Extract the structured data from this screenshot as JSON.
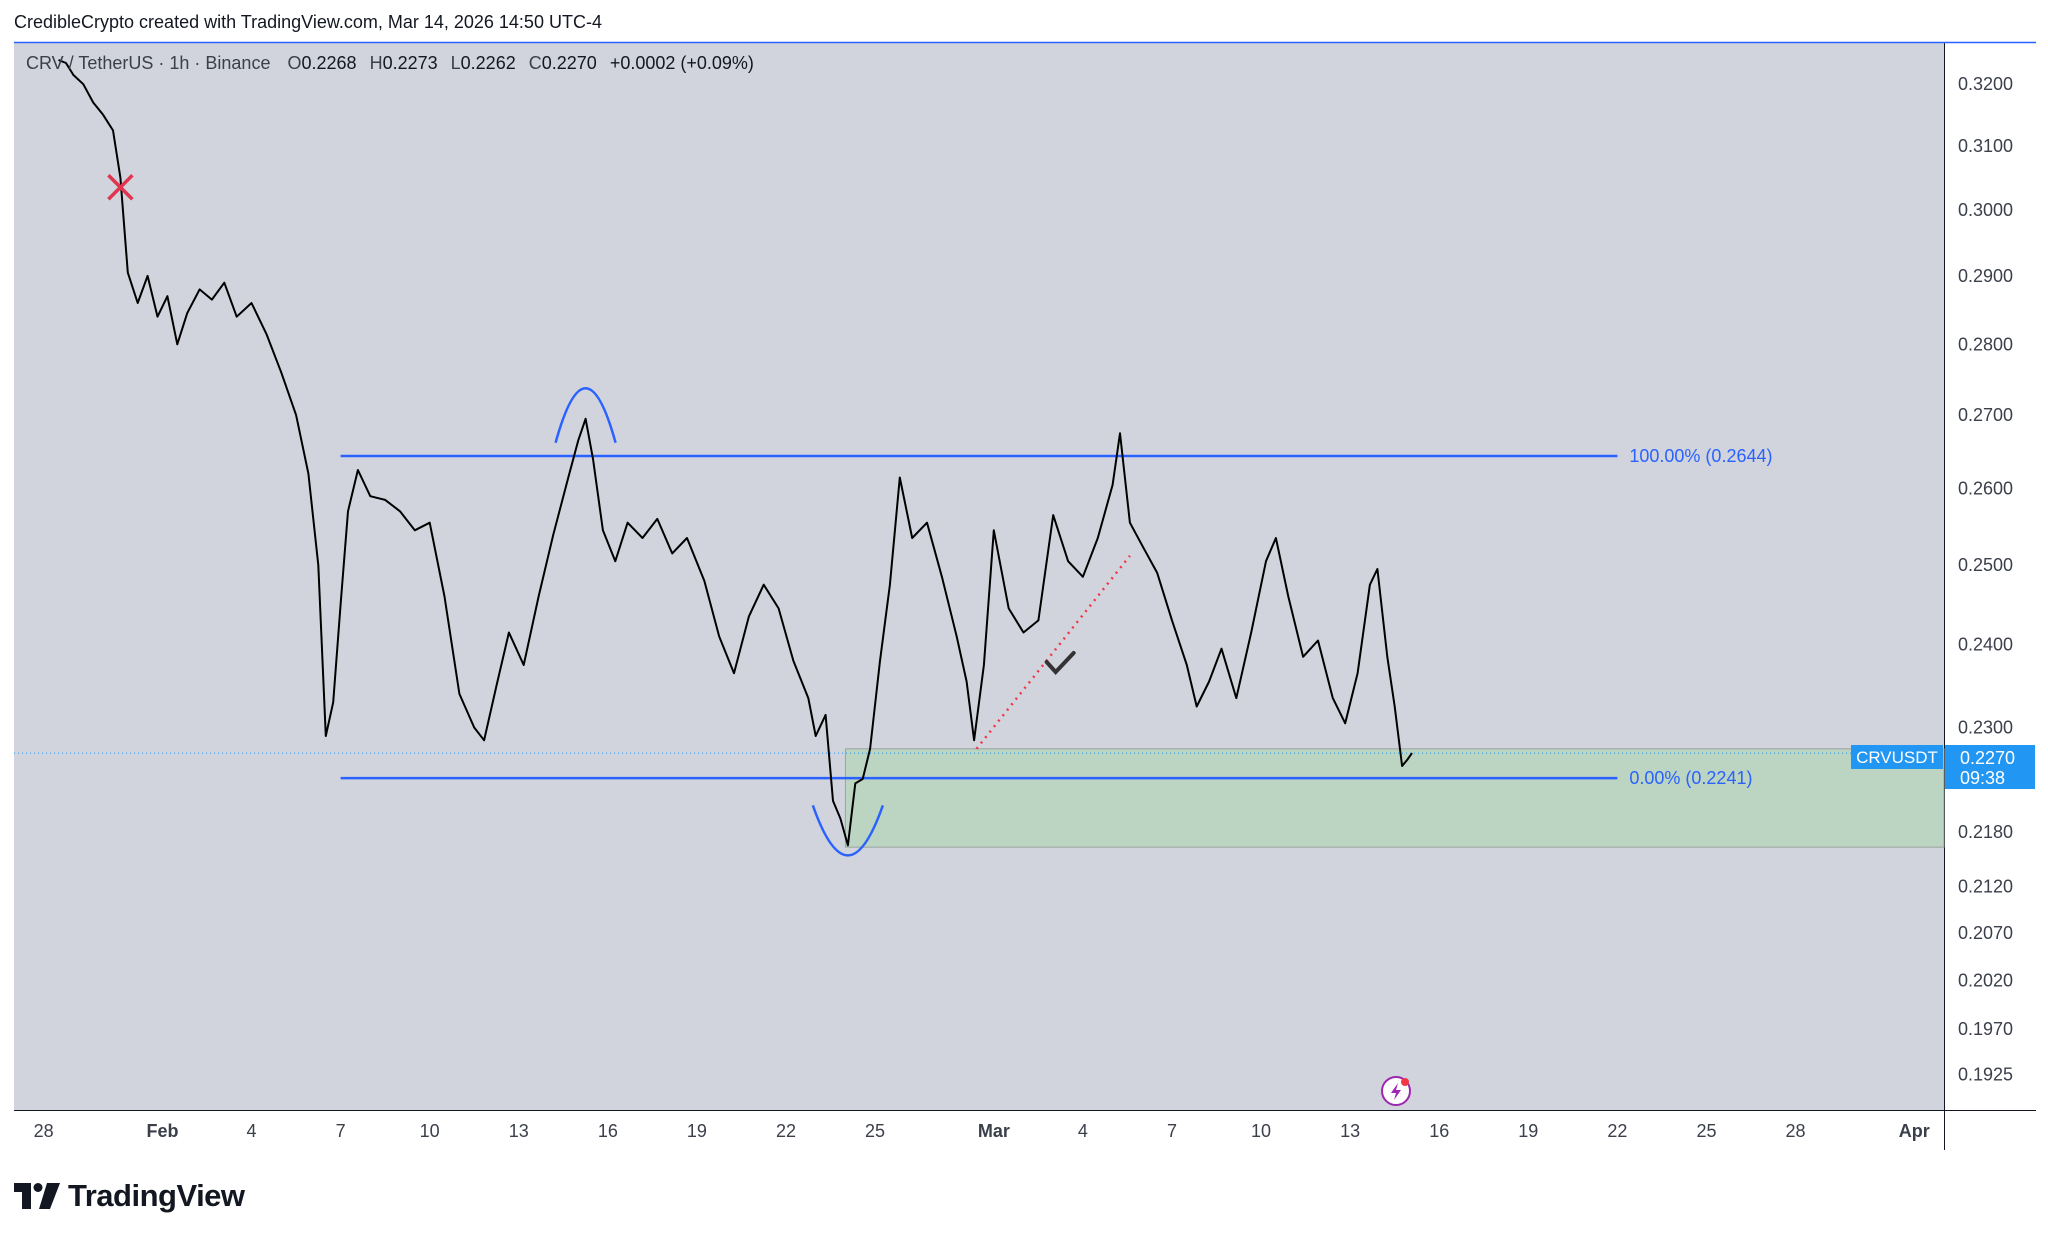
{
  "header": {
    "text": "CredibleCrypto created with TradingView.com, Mar 14, 2026 14:50 UTC-4"
  },
  "legend": {
    "symbol": "CRV / TetherUS · 1h · Binance",
    "open_label": "O",
    "open": "0.2268",
    "high_label": "H",
    "high": "0.2273",
    "low_label": "L",
    "low": "0.2262",
    "close_label": "C",
    "close": "0.2270",
    "change": "+0.0002 (+0.09%)"
  },
  "price_tag": {
    "symbol": "CRVUSDT",
    "price": "0.2270",
    "countdown": "09:38"
  },
  "colors": {
    "background": "#d1d4dd",
    "candles": "#000000",
    "fib_line": "#2962ff",
    "zone_fill": "#b8d4bd",
    "dotted_trend": "#f23645",
    "cross": "#e0344f",
    "tag_bg": "#2196f3"
  },
  "branding": {
    "logo_text": "TradingView"
  },
  "chart_data": {
    "type": "line",
    "y_scale": "log",
    "ylim": [
      0.189,
      0.327
    ],
    "xlim": [
      "2026-01-27",
      "2026-04-02"
    ],
    "y_ticks": [
      "0.3200",
      "0.3100",
      "0.3000",
      "0.2900",
      "0.2800",
      "0.2700",
      "0.2600",
      "0.2500",
      "0.2400",
      "0.2300",
      "0.2180",
      "0.2120",
      "0.2070",
      "0.2020",
      "0.1970",
      "0.1925"
    ],
    "x_ticks": [
      {
        "label": "28",
        "date": "2026-01-28"
      },
      {
        "label": "Feb",
        "date": "2026-02-01"
      },
      {
        "label": "4",
        "date": "2026-02-04"
      },
      {
        "label": "7",
        "date": "2026-02-07"
      },
      {
        "label": "10",
        "date": "2026-02-10"
      },
      {
        "label": "13",
        "date": "2026-02-13"
      },
      {
        "label": "16",
        "date": "2026-02-16"
      },
      {
        "label": "19",
        "date": "2026-02-19"
      },
      {
        "label": "22",
        "date": "2026-02-22"
      },
      {
        "label": "25",
        "date": "2026-02-25"
      },
      {
        "label": "Mar",
        "date": "2026-03-01"
      },
      {
        "label": "4",
        "date": "2026-03-04"
      },
      {
        "label": "7",
        "date": "2026-03-07"
      },
      {
        "label": "10",
        "date": "2026-03-10"
      },
      {
        "label": "13",
        "date": "2026-03-13"
      },
      {
        "label": "16",
        "date": "2026-03-16"
      },
      {
        "label": "19",
        "date": "2026-03-19"
      },
      {
        "label": "22",
        "date": "2026-03-22"
      },
      {
        "label": "25",
        "date": "2026-03-25"
      },
      {
        "label": "28",
        "date": "2026-03-28"
      },
      {
        "label": "Apr",
        "date": "2026-04-01"
      }
    ],
    "series": [
      {
        "points": [
          [
            "2026-01-28T12:00",
            0.324
          ],
          [
            "2026-01-28T18:00",
            0.3235
          ],
          [
            "2026-01-29T00:00",
            0.3215
          ],
          [
            "2026-01-29T08:00",
            0.32
          ],
          [
            "2026-01-29T16:00",
            0.317
          ],
          [
            "2026-01-30T00:00",
            0.315
          ],
          [
            "2026-01-30T08:00",
            0.3125
          ],
          [
            "2026-01-30T14:00",
            0.305
          ],
          [
            "2026-01-30T20:00",
            0.2905
          ],
          [
            "2026-01-31T04:00",
            0.286
          ],
          [
            "2026-01-31T12:00",
            0.29
          ],
          [
            "2026-01-31T20:00",
            0.284
          ],
          [
            "2026-02-01T04:00",
            0.287
          ],
          [
            "2026-02-01T12:00",
            0.28
          ],
          [
            "2026-02-01T20:00",
            0.2845
          ],
          [
            "2026-02-02T06:00",
            0.288
          ],
          [
            "2026-02-02T16:00",
            0.2865
          ],
          [
            "2026-02-03T02:00",
            0.289
          ],
          [
            "2026-02-03T12:00",
            0.284
          ],
          [
            "2026-02-04T00:00",
            0.286
          ],
          [
            "2026-02-04T12:00",
            0.2815
          ],
          [
            "2026-02-05T00:00",
            0.276
          ],
          [
            "2026-02-05T12:00",
            0.27
          ],
          [
            "2026-02-05T22:00",
            0.262
          ],
          [
            "2026-02-06T06:00",
            0.25
          ],
          [
            "2026-02-06T12:00",
            0.229
          ],
          [
            "2026-02-06T18:00",
            0.233
          ],
          [
            "2026-02-07T00:00",
            0.245
          ],
          [
            "2026-02-07T06:00",
            0.257
          ],
          [
            "2026-02-07T14:00",
            0.2625
          ],
          [
            "2026-02-08T00:00",
            0.259
          ],
          [
            "2026-02-08T12:00",
            0.2585
          ],
          [
            "2026-02-09T00:00",
            0.257
          ],
          [
            "2026-02-09T12:00",
            0.2545
          ],
          [
            "2026-02-10T00:00",
            0.2555
          ],
          [
            "2026-02-10T12:00",
            0.246
          ],
          [
            "2026-02-11T00:00",
            0.234
          ],
          [
            "2026-02-11T12:00",
            0.23
          ],
          [
            "2026-02-11T20:00",
            0.2285
          ],
          [
            "2026-02-12T06:00",
            0.235
          ],
          [
            "2026-02-12T16:00",
            0.2415
          ],
          [
            "2026-02-13T04:00",
            0.2375
          ],
          [
            "2026-02-13T16:00",
            0.246
          ],
          [
            "2026-02-14T04:00",
            0.254
          ],
          [
            "2026-02-14T16:00",
            0.2615
          ],
          [
            "2026-02-15T00:00",
            0.2665
          ],
          [
            "2026-02-15T06:00",
            0.2695
          ],
          [
            "2026-02-15T12:00",
            0.264
          ],
          [
            "2026-02-15T20:00",
            0.2545
          ],
          [
            "2026-02-16T06:00",
            0.2505
          ],
          [
            "2026-02-16T16:00",
            0.2555
          ],
          [
            "2026-02-17T04:00",
            0.2535
          ],
          [
            "2026-02-17T16:00",
            0.256
          ],
          [
            "2026-02-18T04:00",
            0.2515
          ],
          [
            "2026-02-18T16:00",
            0.2535
          ],
          [
            "2026-02-19T06:00",
            0.248
          ],
          [
            "2026-02-19T18:00",
            0.241
          ],
          [
            "2026-02-20T06:00",
            0.2365
          ],
          [
            "2026-02-20T18:00",
            0.2435
          ],
          [
            "2026-02-21T06:00",
            0.2475
          ],
          [
            "2026-02-21T18:00",
            0.2445
          ],
          [
            "2026-02-22T06:00",
            0.238
          ],
          [
            "2026-02-22T18:00",
            0.2335
          ],
          [
            "2026-02-23T00:00",
            0.229
          ],
          [
            "2026-02-23T08:00",
            0.2315
          ],
          [
            "2026-02-23T14:00",
            0.2215
          ],
          [
            "2026-02-23T20:00",
            0.2195
          ],
          [
            "2026-02-24T02:00",
            0.2165
          ],
          [
            "2026-02-24T08:00",
            0.2235
          ],
          [
            "2026-02-24T14:00",
            0.224
          ],
          [
            "2026-02-24T20:00",
            0.2275
          ],
          [
            "2026-02-25T04:00",
            0.238
          ],
          [
            "2026-02-25T12:00",
            0.2475
          ],
          [
            "2026-02-25T20:00",
            0.2615
          ],
          [
            "2026-02-26T06:00",
            0.2535
          ],
          [
            "2026-02-26T18:00",
            0.2555
          ],
          [
            "2026-02-27T06:00",
            0.2485
          ],
          [
            "2026-02-27T18:00",
            0.241
          ],
          [
            "2026-02-28T02:00",
            0.2355
          ],
          [
            "2026-02-28T08:00",
            0.2285
          ],
          [
            "2026-02-28T16:00",
            0.2375
          ],
          [
            "2026-03-01T00:00",
            0.2545
          ],
          [
            "2026-03-01T12:00",
            0.2445
          ],
          [
            "2026-03-02T00:00",
            0.2415
          ],
          [
            "2026-03-02T12:00",
            0.243
          ],
          [
            "2026-03-03T00:00",
            0.2565
          ],
          [
            "2026-03-03T12:00",
            0.2505
          ],
          [
            "2026-03-04T00:00",
            0.2485
          ],
          [
            "2026-03-04T12:00",
            0.2535
          ],
          [
            "2026-03-05T00:00",
            0.2605
          ],
          [
            "2026-03-05T06:00",
            0.2675
          ],
          [
            "2026-03-05T14:00",
            0.2555
          ],
          [
            "2026-03-06T00:00",
            0.2525
          ],
          [
            "2026-03-06T12:00",
            0.249
          ],
          [
            "2026-03-07T00:00",
            0.243
          ],
          [
            "2026-03-07T12:00",
            0.2375
          ],
          [
            "2026-03-07T20:00",
            0.2325
          ],
          [
            "2026-03-08T06:00",
            0.2355
          ],
          [
            "2026-03-08T16:00",
            0.2395
          ],
          [
            "2026-03-09T04:00",
            0.2335
          ],
          [
            "2026-03-09T16:00",
            0.2415
          ],
          [
            "2026-03-10T04:00",
            0.2505
          ],
          [
            "2026-03-10T12:00",
            0.2535
          ],
          [
            "2026-03-10T22:00",
            0.246
          ],
          [
            "2026-03-11T10:00",
            0.2385
          ],
          [
            "2026-03-11T22:00",
            0.2405
          ],
          [
            "2026-03-12T10:00",
            0.2335
          ],
          [
            "2026-03-12T20:00",
            0.2305
          ],
          [
            "2026-03-13T06:00",
            0.2365
          ],
          [
            "2026-03-13T16:00",
            0.2475
          ],
          [
            "2026-03-13T22:00",
            0.2495
          ],
          [
            "2026-03-14T06:00",
            0.2385
          ],
          [
            "2026-03-14T12:00",
            0.2325
          ],
          [
            "2026-03-14T18:00",
            0.2255
          ],
          [
            "2026-03-14T22:00",
            0.2262
          ],
          [
            "2026-03-15T02:00",
            0.227
          ]
        ]
      }
    ]
  },
  "drawings": {
    "fib_levels": [
      {
        "label": "100.00% (0.2644)",
        "price": 0.2644,
        "from": "2026-02-07T00:00",
        "to": "2026-03-22T00:00"
      },
      {
        "label": "0.00% (0.2241)",
        "price": 0.2241,
        "from": "2026-02-07T00:00",
        "to": "2026-03-22T00:00"
      }
    ],
    "zone": {
      "top": 0.2275,
      "bottom": 0.2163,
      "from": "2026-02-24T00:00"
    },
    "dotted_trendline": {
      "from": [
        "2026-02-28T10:00",
        0.2275
      ],
      "to": [
        "2026-03-05T14:00",
        0.2512
      ]
    },
    "current_price_line": 0.227
  }
}
